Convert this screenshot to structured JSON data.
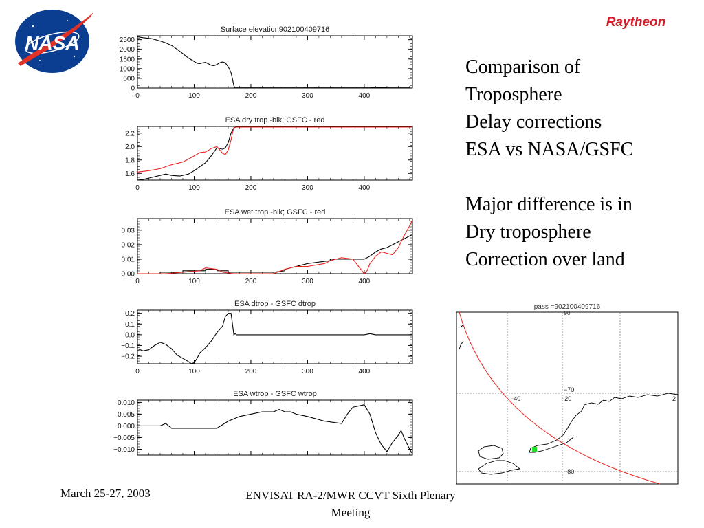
{
  "slide": {
    "logo_left": "NASA",
    "logo_right": "Raytheon",
    "comment_lines_1": [
      "Comparison of",
      "Troposphere",
      "Delay corrections",
      "ESA vs NASA/GSFC"
    ],
    "comment_lines_2": [
      "Major difference is in",
      "Dry troposphere",
      "Correction over land"
    ],
    "footer_date": "March 25-27, 2003",
    "footer_meeting": "ENVISAT RA-2/MWR CCVT Sixth Plenary Meeting"
  },
  "colors": {
    "esa": "#000000",
    "gsfc": "#e8231f",
    "nasa_blue": "#0b3d91",
    "nasa_red": "#e03127",
    "raytheon_red": "#d0202a",
    "track": "#e8231f",
    "marker": "#22dd22"
  },
  "chart_data": [
    {
      "type": "line",
      "title": "Surface elevation902100409716",
      "xlim": [
        0,
        485
      ],
      "ylim": [
        0,
        2700
      ],
      "xticks": [
        0,
        100,
        200,
        300,
        400
      ],
      "yticks": [
        0,
        500,
        1000,
        1500,
        2000,
        2500
      ],
      "ytick_labels": [
        "0",
        "500",
        "1000",
        "1500",
        "2000",
        "2500"
      ],
      "series": [
        {
          "color": "esa",
          "x": [
            0,
            10,
            25,
            40,
            50,
            60,
            70,
            80,
            90,
            100,
            105,
            110,
            115,
            120,
            125,
            130,
            135,
            140,
            145,
            150,
            155,
            160,
            165,
            168,
            170,
            172,
            200,
            300,
            400,
            410,
            420,
            440,
            480
          ],
          "y": [
            2650,
            2600,
            2550,
            2430,
            2330,
            2200,
            2000,
            1780,
            1550,
            1370,
            1280,
            1260,
            1300,
            1330,
            1250,
            1180,
            1150,
            1220,
            1300,
            1350,
            1300,
            1100,
            800,
            400,
            120,
            10,
            10,
            10,
            10,
            10,
            30,
            10,
            10
          ]
        }
      ]
    },
    {
      "type": "line",
      "title": "ESA dry trop -blk; GSFC - red",
      "xlim": [
        0,
        485
      ],
      "ylim": [
        1.5,
        2.3
      ],
      "xticks": [
        0,
        100,
        200,
        300,
        400
      ],
      "yticks": [
        1.6,
        1.8,
        2.0,
        2.2
      ],
      "ytick_labels": [
        "1.6",
        "1.8",
        "2.0",
        "2.2"
      ],
      "series": [
        {
          "color": "esa",
          "x": [
            0,
            10,
            25,
            40,
            50,
            60,
            75,
            90,
            100,
            110,
            120,
            130,
            140,
            150,
            155,
            160,
            165,
            170,
            175,
            485
          ],
          "y": [
            1.5,
            1.51,
            1.54,
            1.57,
            1.59,
            1.57,
            1.56,
            1.59,
            1.64,
            1.7,
            1.76,
            1.86,
            1.98,
            1.96,
            1.98,
            2.06,
            2.2,
            2.28,
            2.29,
            2.29
          ]
        },
        {
          "color": "gsfc",
          "x": [
            0,
            20,
            40,
            60,
            80,
            100,
            110,
            120,
            130,
            140,
            150,
            155,
            160,
            165,
            168,
            170,
            175,
            485
          ],
          "y": [
            1.62,
            1.64,
            1.67,
            1.73,
            1.77,
            1.86,
            1.91,
            1.92,
            1.97,
            2.0,
            1.9,
            1.88,
            1.95,
            2.1,
            2.22,
            2.28,
            2.29,
            2.29
          ]
        }
      ]
    },
    {
      "type": "line",
      "title": "ESA wet trop -blk; GSFC - red",
      "xlim": [
        0,
        485
      ],
      "ylim": [
        0,
        0.038
      ],
      "xticks": [
        0,
        100,
        200,
        300,
        400
      ],
      "yticks": [
        0.0,
        0.01,
        0.02,
        0.03
      ],
      "ytick_labels": [
        "0.00",
        "0.01",
        "0.02",
        "0.03"
      ],
      "series": [
        {
          "color": "esa",
          "x": [
            0,
            40,
            40,
            80,
            80,
            120,
            120,
            140,
            140,
            160,
            160,
            200,
            240,
            260,
            260,
            300,
            340,
            340,
            360,
            400,
            410,
            420,
            430,
            440,
            460,
            480,
            485
          ],
          "y": [
            0.0,
            0.0,
            0.001,
            0.001,
            0.002,
            0.002,
            0.003,
            0.003,
            0.002,
            0.002,
            0.001,
            0.001,
            0.001,
            0.002,
            0.003,
            0.007,
            0.009,
            0.01,
            0.01,
            0.01,
            0.012,
            0.015,
            0.017,
            0.018,
            0.022,
            0.026,
            0.027
          ]
        },
        {
          "color": "gsfc",
          "x": [
            0,
            50,
            80,
            110,
            120,
            140,
            150,
            170,
            180,
            190,
            200,
            240,
            260,
            280,
            300,
            330,
            340,
            360,
            380,
            390,
            400,
            405,
            410,
            420,
            430,
            440,
            450,
            460,
            470,
            480,
            485
          ],
          "y": [
            0.0,
            0.0,
            0.001,
            0.002,
            0.004,
            0.003,
            0.001,
            0.0,
            0.0,
            0.0,
            0.0,
            0.0,
            0.003,
            0.005,
            0.005,
            0.007,
            0.009,
            0.011,
            0.01,
            0.005,
            0.0,
            0.002,
            0.007,
            0.012,
            0.015,
            0.014,
            0.013,
            0.018,
            0.026,
            0.033,
            0.037
          ]
        }
      ]
    },
    {
      "type": "line",
      "title": "ESA dtrop - GSFC dtrop",
      "xlim": [
        0,
        485
      ],
      "ylim": [
        -0.27,
        0.23
      ],
      "xticks": [
        0,
        100,
        200,
        300,
        400
      ],
      "yticks": [
        -0.2,
        -0.1,
        0.0,
        0.1,
        0.2
      ],
      "ytick_labels": [
        "−0.2",
        "−0.1",
        "0.0",
        "0.1",
        "0.2"
      ],
      "series": [
        {
          "color": "esa",
          "x": [
            0,
            10,
            20,
            30,
            40,
            50,
            60,
            70,
            80,
            90,
            95,
            100,
            105,
            110,
            120,
            130,
            140,
            150,
            155,
            160,
            165,
            168,
            170,
            172,
            175,
            200,
            300,
            400,
            410,
            420,
            485
          ],
          "y": [
            -0.13,
            -0.15,
            -0.14,
            -0.1,
            -0.07,
            -0.09,
            -0.13,
            -0.19,
            -0.22,
            -0.25,
            -0.27,
            -0.26,
            -0.22,
            -0.17,
            -0.12,
            -0.06,
            0.02,
            0.08,
            0.17,
            0.2,
            0.2,
            0.08,
            0.0,
            0.01,
            0.0,
            0.0,
            0.0,
            0.0,
            0.01,
            0.0,
            0.0
          ]
        }
      ]
    },
    {
      "type": "line",
      "title": "ESA wtrop - GSFC wtrop",
      "xlim": [
        0,
        485
      ],
      "ylim": [
        -0.0125,
        0.011
      ],
      "xticks": [],
      "yticks": [
        -0.01,
        -0.005,
        0.0,
        0.005,
        0.01
      ],
      "ytick_labels": [
        "−0.010",
        "−0.005",
        "0.000",
        "0.005",
        "0.010"
      ],
      "series": [
        {
          "color": "esa",
          "x": [
            0,
            20,
            40,
            50,
            60,
            80,
            100,
            120,
            140,
            160,
            180,
            200,
            220,
            240,
            250,
            260,
            270,
            280,
            300,
            330,
            360,
            370,
            380,
            400,
            410,
            420,
            430,
            440,
            450,
            460,
            465,
            470,
            480,
            485
          ],
          "y": [
            0.0,
            0.0,
            0.0,
            0.001,
            -0.001,
            -0.001,
            -0.001,
            -0.001,
            -0.001,
            0.002,
            0.004,
            0.005,
            0.006,
            0.006,
            0.007,
            0.006,
            0.006,
            0.005,
            0.004,
            0.002,
            0.001,
            0.005,
            0.008,
            0.009,
            0.005,
            -0.003,
            -0.008,
            -0.011,
            -0.007,
            -0.004,
            -0.002,
            -0.005,
            -0.01,
            -0.012
          ]
        }
      ]
    },
    {
      "type": "map",
      "title": "pass =902100409716",
      "lon_labels": [
        "−40",
        "−20",
        "2"
      ],
      "lat_labels": [
        "−70",
        "−80"
      ],
      "corner_label": "90"
    }
  ]
}
